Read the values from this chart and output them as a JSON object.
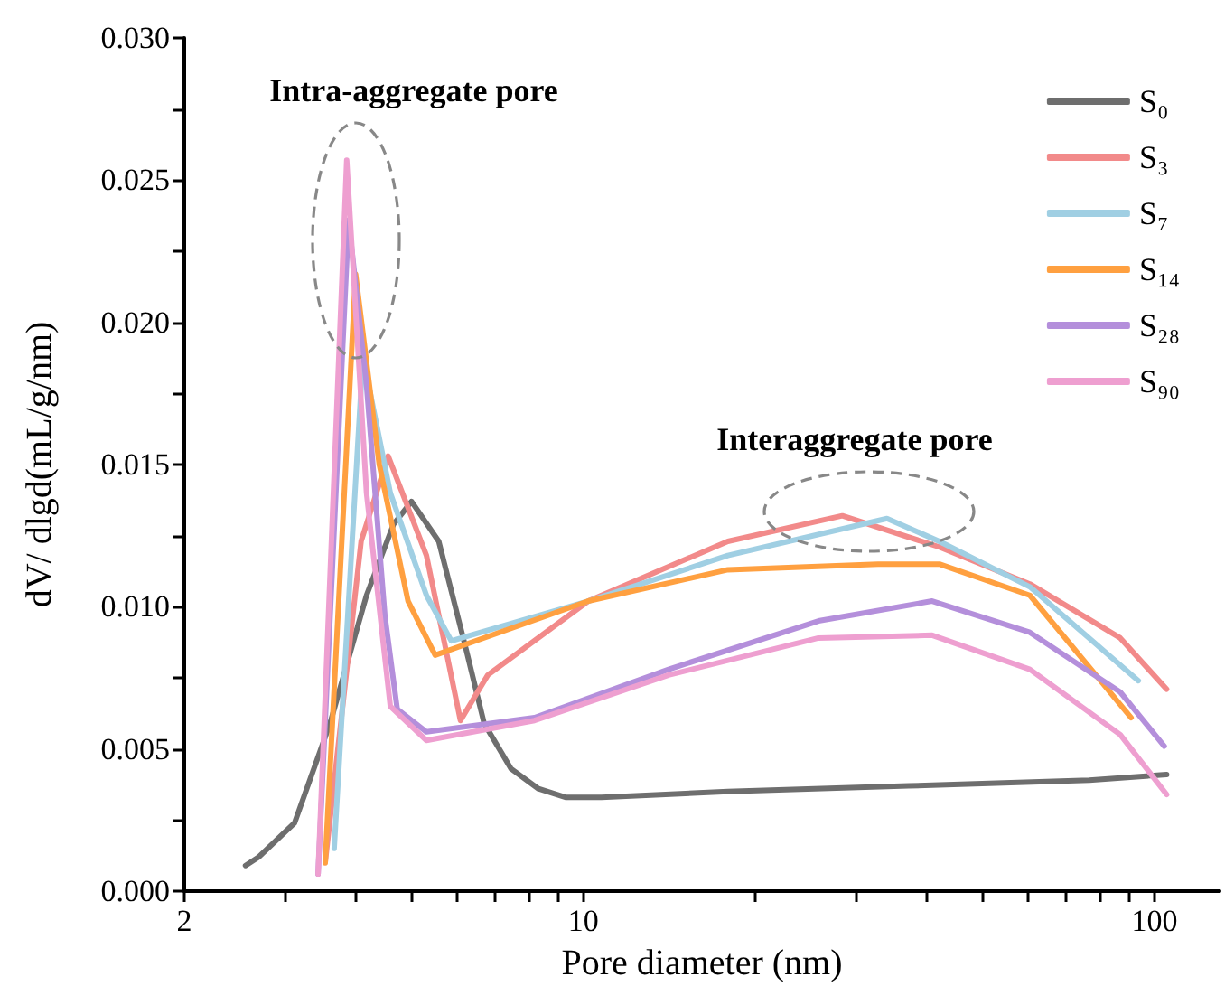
{
  "chart_data": {
    "type": "line",
    "xlabel": "Pore diameter (nm)",
    "ylabel": "dV/ dlgd(mL/g/nm)",
    "log": "x",
    "xlim": [
      2,
      130
    ],
    "xticks": [
      2,
      {
        "value": 3,
        "label": null
      },
      {
        "value": 4,
        "label": null
      },
      {
        "value": 5,
        "label": null
      },
      {
        "value": 6,
        "label": null
      },
      {
        "value": 7,
        "label": null
      },
      {
        "value": 8,
        "label": null
      },
      {
        "value": 9,
        "label": null
      },
      10,
      {
        "value": 20,
        "label": null
      },
      {
        "value": 30,
        "label": null
      },
      {
        "value": 40,
        "label": null
      },
      {
        "value": 50,
        "label": null
      },
      {
        "value": 60,
        "label": null
      },
      {
        "value": 70,
        "label": null
      },
      {
        "value": 80,
        "label": null
      },
      {
        "value": 90,
        "label": null
      },
      100
    ],
    "ylim": [
      0,
      0.03
    ],
    "yticks": [
      {
        "value": 0,
        "label": "0.000"
      },
      {
        "value": 0.0025,
        "label": null
      },
      {
        "value": 0.005,
        "label": "0.005"
      },
      {
        "value": 0.0075,
        "label": null
      },
      {
        "value": 0.01,
        "label": "0.010"
      },
      {
        "value": 0.0125,
        "label": null
      },
      {
        "value": 0.015,
        "label": "0.015"
      },
      {
        "value": 0.0175,
        "label": null
      },
      {
        "value": 0.02,
        "label": "0.020"
      },
      {
        "value": 0.0225,
        "label": null
      },
      {
        "value": 0.025,
        "label": "0.025"
      },
      {
        "value": 0.0275,
        "label": null
      },
      {
        "value": 0.03,
        "label": "0.030"
      }
    ],
    "grid": false,
    "legend": "top right",
    "marker": "none",
    "line_style": "solid",
    "annotations": [
      "Intra-aggregate pore",
      "Interaggregate pore"
    ],
    "series": [
      {
        "name": "S₀",
        "color": "#6e6e6e",
        "x": [
          2.56,
          2.7,
          3.12,
          3.6,
          4.17,
          4.65,
          5.0,
          5.58,
          6.23,
          6.7,
          7.47,
          8.34,
          9.3,
          10.75,
          17.9,
          37.1,
          76.9,
          105
        ],
        "values": [
          0.0009,
          0.0012,
          0.0024,
          0.0059,
          0.0104,
          0.0129,
          0.0137,
          0.0123,
          0.0085,
          0.0059,
          0.0043,
          0.0036,
          0.0033,
          0.0033,
          0.0035,
          0.0037,
          0.0039,
          0.0041
        ]
      },
      {
        "name": "S₃",
        "color": "#f28a8a",
        "x": [
          3.53,
          4.08,
          4.55,
          5.31,
          6.09,
          6.8,
          10.2,
          17.9,
          28.4,
          42.0,
          60.5,
          87.1,
          105
        ],
        "values": [
          0.001,
          0.0123,
          0.0153,
          0.0118,
          0.006,
          0.0076,
          0.0102,
          0.0123,
          0.0132,
          0.0121,
          0.0108,
          0.0089,
          0.0071
        ]
      },
      {
        "name": "S₇",
        "color": "#a0cfe3",
        "x": [
          3.66,
          4.11,
          4.59,
          5.31,
          5.87,
          10.2,
          17.9,
          34.0,
          42.0,
          60.5,
          93.7
        ],
        "values": [
          0.0015,
          0.0188,
          0.014,
          0.0104,
          0.0088,
          0.0102,
          0.0118,
          0.0131,
          0.0123,
          0.0107,
          0.0074
        ]
      },
      {
        "name": "S₁₄",
        "color": "#ffa040",
        "x": [
          3.53,
          3.99,
          4.39,
          4.93,
          5.5,
          10.2,
          17.9,
          32.8,
          42.0,
          60.5,
          91.0
        ],
        "values": [
          0.001,
          0.0217,
          0.015,
          0.0102,
          0.0083,
          0.0102,
          0.0113,
          0.0115,
          0.0115,
          0.0104,
          0.0061
        ]
      },
      {
        "name": "S₂₈",
        "color": "#b48fdb",
        "x": [
          3.43,
          3.88,
          4.17,
          4.49,
          4.72,
          5.31,
          8.21,
          14.1,
          25.8,
          40.8,
          60.5,
          87.1,
          104
        ],
        "values": [
          0.0006,
          0.0236,
          0.0178,
          0.0097,
          0.0064,
          0.0056,
          0.0061,
          0.0078,
          0.0095,
          0.0102,
          0.0091,
          0.007,
          0.0051
        ]
      },
      {
        "name": "S₉₀",
        "color": "#ee9fd0",
        "x": [
          3.43,
          3.85,
          4.17,
          4.59,
          5.31,
          8.21,
          14.1,
          25.8,
          40.8,
          60.5,
          87.1,
          105
        ],
        "values": [
          0.0006,
          0.0257,
          0.014,
          0.0065,
          0.0053,
          0.006,
          0.0076,
          0.0089,
          0.009,
          0.0078,
          0.0055,
          0.0034
        ]
      }
    ]
  }
}
